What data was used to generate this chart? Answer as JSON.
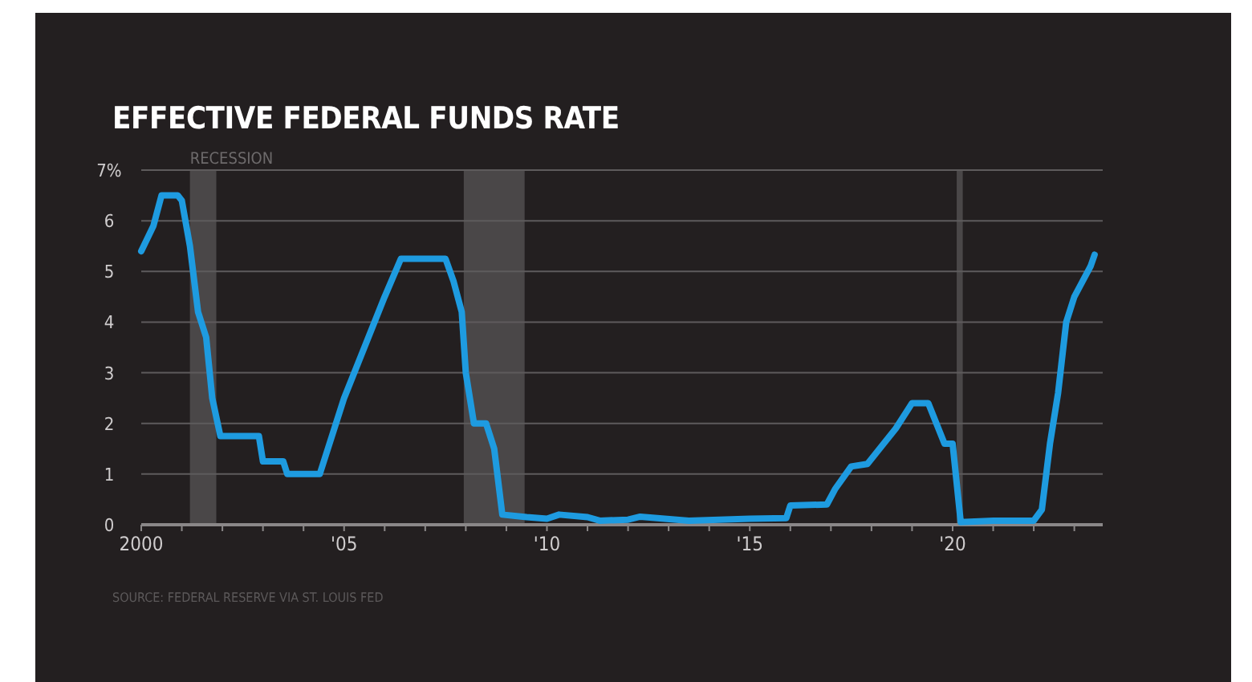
{
  "chart_data": {
    "type": "line",
    "title": "EFFECTIVE FEDERAL FUNDS RATE",
    "annotations": [
      "SOURCE: FEDERAL RESERVE VIA ST. LOUIS FED"
    ],
    "x": [
      2000.0,
      2000.3,
      2000.5,
      2000.9,
      2001.0,
      2001.2,
      2001.4,
      2001.6,
      2001.75,
      2001.95,
      2002.5,
      2002.9,
      2003.0,
      2003.5,
      2003.6,
      2004.0,
      2004.4,
      2005.0,
      2005.5,
      2006.0,
      2006.4,
      2007.5,
      2007.7,
      2007.9,
      2008.0,
      2008.2,
      2008.5,
      2008.7,
      2008.9,
      2009.5,
      2010.0,
      2010.3,
      2011.0,
      2011.3,
      2012.0,
      2012.3,
      2013.5,
      2015.0,
      2015.9,
      2016.0,
      2016.9,
      2017.1,
      2017.5,
      2017.9,
      2018.2,
      2018.6,
      2019.0,
      2019.4,
      2019.6,
      2019.8,
      2020.0,
      2020.2,
      2021.0,
      2022.0,
      2022.2,
      2022.4,
      2022.6,
      2022.8,
      2023.0,
      2023.2,
      2023.4,
      2023.5
    ],
    "series": [
      {
        "color": "#1e9be0",
        "values": [
          5.4,
          5.9,
          6.5,
          6.5,
          6.4,
          5.5,
          4.2,
          3.7,
          2.5,
          1.75,
          1.75,
          1.75,
          1.25,
          1.25,
          1.0,
          1.0,
          1.0,
          2.5,
          3.5,
          4.5,
          5.25,
          5.25,
          4.8,
          4.2,
          3.0,
          2.0,
          2.0,
          1.5,
          0.2,
          0.15,
          0.12,
          0.2,
          0.15,
          0.08,
          0.1,
          0.16,
          0.08,
          0.12,
          0.13,
          0.38,
          0.4,
          0.7,
          1.15,
          1.2,
          1.5,
          1.9,
          2.4,
          2.4,
          2.0,
          1.6,
          1.6,
          0.05,
          0.08,
          0.08,
          0.3,
          1.6,
          2.6,
          4.0,
          4.5,
          4.8,
          5.1,
          5.33
        ]
      }
    ],
    "xlim": [
      2000,
      2023.7
    ],
    "xticks": [
      2000,
      {
        "value": 2001,
        "label": null
      },
      {
        "value": 2002,
        "label": null
      },
      {
        "value": 2003,
        "label": null
      },
      {
        "value": 2004,
        "label": null
      },
      {
        "value": 2005,
        "label": "'05"
      },
      {
        "value": 2006,
        "label": null
      },
      {
        "value": 2007,
        "label": null
      },
      {
        "value": 2008,
        "label": null
      },
      {
        "value": 2009,
        "label": null
      },
      {
        "value": 2010,
        "label": "'10"
      },
      {
        "value": 2011,
        "label": null
      },
      {
        "value": 2012,
        "label": null
      },
      {
        "value": 2013,
        "label": null
      },
      {
        "value": 2014,
        "label": null
      },
      {
        "value": 2015,
        "label": "'15"
      },
      {
        "value": 2016,
        "label": null
      },
      {
        "value": 2017,
        "label": null
      },
      {
        "value": 2018,
        "label": null
      },
      {
        "value": 2019,
        "label": null
      },
      {
        "value": 2020,
        "label": "'20"
      },
      {
        "value": 2021,
        "label": null
      },
      {
        "value": 2022,
        "label": null
      },
      {
        "value": 2023,
        "label": null
      }
    ],
    "ylim": [
      0,
      7
    ],
    "yticks": [
      0,
      1,
      2,
      3,
      4,
      5,
      6,
      {
        "value": 7,
        "label": "7%"
      }
    ],
    "grid": "y",
    "line_style": "solid",
    "bands": [
      {
        "axis": "x",
        "from": 2001.2,
        "to": 2001.85,
        "label": "RECESSION",
        "color": "#4a4748"
      },
      {
        "axis": "x",
        "from": 2007.95,
        "to": 2009.45,
        "color": "#4a4748"
      },
      {
        "axis": "x",
        "from": 2020.1,
        "to": 2020.25,
        "color": "#4a4748"
      }
    ]
  }
}
